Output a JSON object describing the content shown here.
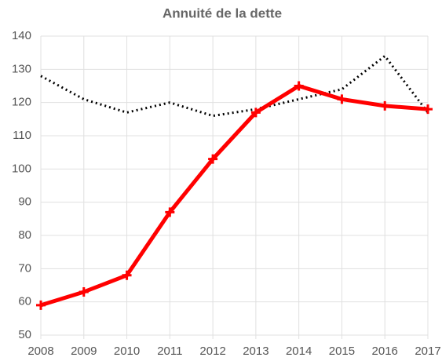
{
  "chart_data": {
    "type": "line",
    "title": "Annuité de la dette",
    "x": [
      2008,
      2009,
      2010,
      2011,
      2012,
      2013,
      2014,
      2015,
      2016,
      2017
    ],
    "series": [
      {
        "color": "#ff0000",
        "values": [
          59,
          63,
          68,
          87,
          103,
          117,
          125,
          121,
          119,
          118
        ]
      },
      {
        "color": "#000000",
        "values": [
          128,
          121,
          117,
          120,
          116,
          118,
          121,
          124,
          134,
          117
        ]
      }
    ],
    "xlim": [
      2008,
      2017
    ],
    "xticks": [
      2008,
      2009,
      2010,
      2011,
      2012,
      2013,
      2014,
      2015,
      2016,
      2017
    ],
    "ylim": [
      50,
      140
    ],
    "yticks": [
      50,
      60,
      70,
      80,
      90,
      100,
      110,
      120,
      130,
      140
    ],
    "grid": true
  }
}
